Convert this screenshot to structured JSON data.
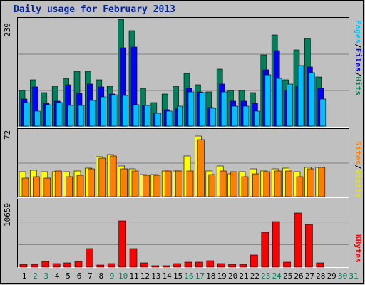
{
  "title": "Daily usage for February 2013",
  "colors": {
    "hits": "#00805c",
    "files": "#0000ff",
    "pages": "#00c0ff",
    "visits": "#ffff00",
    "sites": "#ff8000",
    "kbytes": "#ff0000",
    "weekday_label": "#000000",
    "weekend_label": "#00805c"
  },
  "panels": {
    "traffic": {
      "ymax": "239",
      "labels": [
        "Pages",
        "Files",
        "Hits"
      ],
      "separator": "/"
    },
    "visitors": {
      "ymax": "72",
      "labels": [
        "Sites",
        "Visits"
      ],
      "separator": "/"
    },
    "volume": {
      "ymax": "10659",
      "labels": [
        "KBytes"
      ]
    }
  },
  "chart_data": {
    "type": "bar",
    "title": "Daily usage for February 2013",
    "x": [
      "1",
      "2",
      "3",
      "4",
      "5",
      "6",
      "7",
      "8",
      "9",
      "10",
      "11",
      "12",
      "13",
      "14",
      "15",
      "16",
      "17",
      "18",
      "19",
      "20",
      "21",
      "22",
      "23",
      "24",
      "25",
      "26",
      "27",
      "28",
      "29",
      "30",
      "31"
    ],
    "weekend_days": [
      "2",
      "3",
      "9",
      "10",
      "16",
      "17",
      "23",
      "24",
      "30",
      "31"
    ],
    "series": [
      {
        "name": "Hits",
        "ylim": [
          0,
          239
        ],
        "values": [
          80,
          103,
          75,
          89,
          107,
          123,
          123,
          103,
          89,
          239,
          213,
          84,
          52,
          72,
          89,
          118,
          93,
          77,
          128,
          80,
          80,
          75,
          159,
          204,
          103,
          170,
          196,
          110,
          0,
          0,
          0
        ]
      },
      {
        "name": "Files",
        "ylim": [
          0,
          239
        ],
        "values": [
          60,
          87,
          51,
          56,
          93,
          74,
          94,
          87,
          72,
          176,
          177,
          47,
          28,
          37,
          38,
          84,
          77,
          42,
          94,
          55,
          55,
          51,
          126,
          169,
          80,
          90,
          133,
          85,
          0,
          0,
          0
        ]
      },
      {
        "name": "Pages",
        "ylim": [
          0,
          239
        ],
        "values": [
          52,
          33,
          48,
          52,
          46,
          47,
          57,
          65,
          70,
          69,
          48,
          47,
          28,
          34,
          44,
          77,
          75,
          40,
          77,
          45,
          45,
          33,
          115,
          107,
          94,
          136,
          120,
          60,
          0,
          0,
          0
        ]
      },
      {
        "name": "Visits",
        "ylim": [
          0,
          72
        ],
        "values": [
          27,
          29,
          27,
          27,
          27,
          28,
          31,
          43,
          46,
          33,
          30,
          24,
          24,
          28,
          28,
          44,
          66,
          28,
          33,
          25,
          27,
          30,
          28,
          30,
          31,
          27,
          32,
          32,
          0,
          0,
          0
        ]
      },
      {
        "name": "Sites",
        "ylim": [
          0,
          72
        ],
        "values": [
          20,
          22,
          20,
          28,
          22,
          23,
          30,
          42,
          44,
          30,
          28,
          23,
          23,
          28,
          28,
          28,
          62,
          24,
          28,
          27,
          22,
          25,
          27,
          28,
          28,
          22,
          30,
          32,
          0,
          0,
          0
        ]
      },
      {
        "name": "KBytes",
        "ylim": [
          0,
          10659
        ],
        "values": [
          460,
          460,
          910,
          550,
          640,
          960,
          3040,
          300,
          580,
          7570,
          2990,
          690,
          230,
          240,
          550,
          830,
          800,
          1080,
          600,
          460,
          460,
          1940,
          5630,
          7400,
          780,
          8760,
          6950,
          640,
          0,
          0,
          0
        ]
      }
    ]
  }
}
